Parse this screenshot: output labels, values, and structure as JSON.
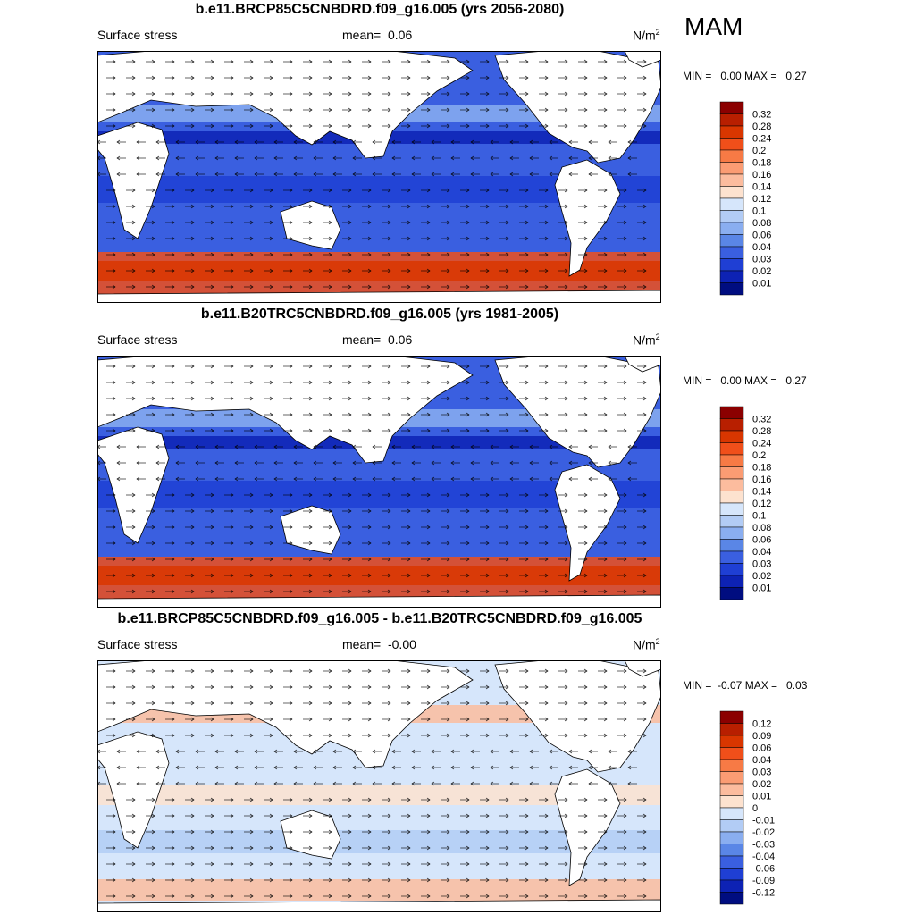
{
  "season": "MAM",
  "panels": [
    {
      "title": "b.e11.BRCP85C5CNBDRD.f09_g16.005 (yrs 2056-2080)",
      "variable": "Surface stress",
      "mean_label": "mean=",
      "mean_value": "0.06",
      "units": "N/m",
      "units_exp": "2",
      "minmax": "MIN =   0.00 MAX =   0.27",
      "colorbar": [
        "0.32",
        "0.28",
        "0.24",
        "0.2",
        "0.18",
        "0.16",
        "0.14",
        "0.12",
        "0.1",
        "0.08",
        "0.06",
        "0.04",
        "0.03",
        "0.02",
        "0.01"
      ],
      "map_fill": "#3a5fe0"
    },
    {
      "title": "b.e11.B20TRC5CNBDRD.f09_g16.005 (yrs 1981-2005)",
      "variable": "Surface stress",
      "mean_label": "mean=",
      "mean_value": "0.06",
      "units": "N/m",
      "units_exp": "2",
      "minmax": "MIN =   0.00 MAX =   0.27",
      "colorbar": [
        "0.32",
        "0.28",
        "0.24",
        "0.2",
        "0.18",
        "0.16",
        "0.14",
        "0.12",
        "0.1",
        "0.08",
        "0.06",
        "0.04",
        "0.03",
        "0.02",
        "0.01"
      ],
      "map_fill": "#3a5fe0"
    },
    {
      "title": "b.e11.BRCP85C5CNBDRD.f09_g16.005 - b.e11.B20TRC5CNBDRD.f09_g16.005",
      "variable": "Surface stress",
      "mean_label": "mean=",
      "mean_value": "-0.00",
      "units": "N/m",
      "units_exp": "2",
      "minmax": "MIN =  -0.07 MAX =   0.03",
      "colorbar": [
        "0.12",
        "0.09",
        "0.06",
        "0.04",
        "0.03",
        "0.02",
        "0.01",
        "0",
        "-0.01",
        "-0.02",
        "-0.03",
        "-0.04",
        "-0.06",
        "-0.09",
        "-0.12"
      ],
      "map_fill": "#d6e6fb"
    }
  ],
  "colorbar_colors": [
    "#8b0000",
    "#b81f00",
    "#d93600",
    "#f04f1a",
    "#f77a45",
    "#fb9c73",
    "#fcbc9e",
    "#fde2cf",
    "#d6e6fb",
    "#b2ccf5",
    "#8aaef0",
    "#5a86e6",
    "#3a5fe0",
    "#1f3fd4",
    "#0d22b4",
    "#000d80"
  ]
}
